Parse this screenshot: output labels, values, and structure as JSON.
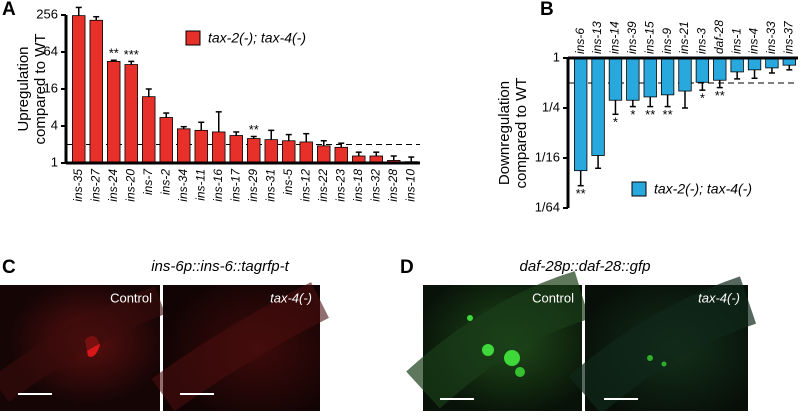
{
  "chart_data": [
    {
      "type": "bar",
      "panel": "A",
      "ylabel": [
        "Upregulation",
        "compared to WT"
      ],
      "log_scale": true,
      "ylim": [
        1,
        256
      ],
      "yticks": [
        1,
        4,
        16,
        64,
        256
      ],
      "reference_line": 2,
      "legend": "top",
      "categories": [
        "ins-35",
        "ins-27",
        "ins-24",
        "ins-20",
        "ins-7",
        "ins-2",
        "ins-34",
        "ins-11",
        "ins-16",
        "ins-17",
        "ins-29",
        "ins-31",
        "ins-5",
        "ins-12",
        "ins-22",
        "ins-23",
        "ins-18",
        "ins-32",
        "ins-28",
        "ins-10"
      ],
      "series": [
        {
          "name": "tax-2(-); tax-4(-)",
          "color": "#e8302a",
          "values": [
            250,
            210,
            45,
            40,
            12,
            5.5,
            3.6,
            3.4,
            3.2,
            2.8,
            2.5,
            2.4,
            2.3,
            2.2,
            1.9,
            1.8,
            1.3,
            1.3,
            1.1,
            1.05
          ],
          "errors": [
            90,
            30,
            2,
            5,
            4,
            1,
            0.3,
            1.2,
            3.6,
            0.4,
            0.2,
            1,
            0.6,
            0.8,
            0.4,
            0.3,
            0.2,
            0.2,
            0.2,
            0.2
          ],
          "significance": [
            null,
            null,
            "**",
            "***",
            null,
            null,
            null,
            null,
            null,
            null,
            "**",
            null,
            null,
            null,
            null,
            null,
            null,
            null,
            null,
            null
          ]
        }
      ]
    },
    {
      "type": "bar",
      "panel": "B",
      "ylabel": [
        "Downregulation",
        "compared to WT"
      ],
      "log_scale": true,
      "ylim": [
        0.015625,
        1
      ],
      "yticks": [
        1,
        {
          "value": 0.25,
          "label": "1/4"
        },
        {
          "value": 0.0625,
          "label": "1/16"
        },
        {
          "value": 0.015625,
          "label": "1/64"
        }
      ],
      "reference_line": 0.5,
      "legend": "bottom",
      "categories": [
        "ins-6",
        "ins-13",
        "ins-14",
        "ins-39",
        "ins-15",
        "ins-9",
        "ins-21",
        "ins-3",
        "daf-28",
        "ins-1",
        "ins-4",
        "ins-33",
        "ins-37"
      ],
      "series": [
        {
          "name": "tax-2(-); tax-4(-)",
          "color": "#29a8de",
          "values": [
            0.044,
            0.067,
            0.31,
            0.31,
            0.34,
            0.36,
            0.4,
            0.51,
            0.54,
            0.68,
            0.72,
            0.76,
            0.82
          ],
          "errors": [
            0.015,
            0.02,
            0.1,
            0.05,
            0.08,
            0.1,
            0.15,
            0.1,
            0.1,
            0.12,
            0.15,
            0.1,
            0.1
          ],
          "significance": [
            "**",
            null,
            "*",
            "*",
            "**",
            "**",
            null,
            "*",
            "**",
            null,
            null,
            null,
            null
          ]
        }
      ]
    }
  ],
  "images": [
    {
      "panel": "C",
      "title": "ins-6p::ins-6::tagrfp-t",
      "labels": [
        "Control",
        "tax-4(-)"
      ]
    },
    {
      "panel": "D",
      "title": "daf-28p::daf-28::gfp",
      "labels": [
        "Control",
        "tax-4(-)"
      ]
    }
  ]
}
